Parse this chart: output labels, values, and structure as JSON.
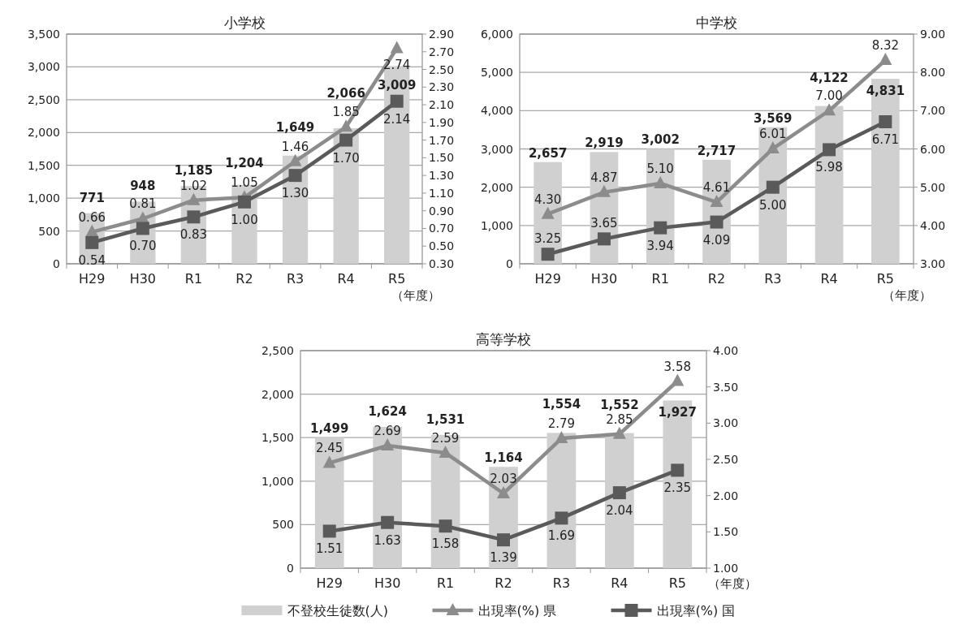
{
  "chart_data": [
    {
      "type": "bar",
      "title": "小学校",
      "xlabel": "（年度）",
      "categories": [
        "H29",
        "H30",
        "R1",
        "R2",
        "R3",
        "R4",
        "R5"
      ],
      "series": [
        {
          "color": "#d0d0d0",
          "values": [
            771,
            948,
            1185,
            1204,
            1649,
            2066,
            3009
          ],
          "value_labels": [
            "771",
            "948",
            "1,185",
            "1,204",
            "1,649",
            "2,066",
            "3,009"
          ]
        },
        {
          "type": "line",
          "axis": "y2",
          "color": "#8c8c8c",
          "marker": "triangle",
          "values": [
            0.66,
            0.81,
            1.02,
            1.05,
            1.46,
            1.85,
            2.74
          ],
          "value_labels": [
            "0.66",
            "0.81",
            "1.02",
            "1.05",
            "1.46",
            "1.85",
            "2.74"
          ]
        },
        {
          "type": "line",
          "axis": "y2",
          "color": "#5a5a5a",
          "marker": "square",
          "values": [
            0.54,
            0.7,
            0.83,
            1.0,
            1.3,
            1.7,
            2.14
          ],
          "value_labels": [
            "0.54",
            "0.70",
            "0.83",
            "1.00",
            "1.30",
            "1.70",
            "2.14"
          ]
        }
      ],
      "ylim": [
        0,
        3500
      ],
      "yticks": [
        {
          "value": 0,
          "label": "0"
        },
        {
          "value": 500,
          "label": "500"
        },
        {
          "value": 1000,
          "label": "1,000"
        },
        {
          "value": 1500,
          "label": "1,500"
        },
        {
          "value": 2000,
          "label": "2,000"
        },
        {
          "value": 2500,
          "label": "2,500"
        },
        {
          "value": 3000,
          "label": "3,000"
        },
        {
          "value": 3500,
          "label": "3,500"
        }
      ],
      "y2lim": [
        0.3,
        2.9
      ],
      "y2ticks": [
        {
          "value": 0.3,
          "label": "0.30"
        },
        {
          "value": 0.5,
          "label": "0.50"
        },
        {
          "value": 0.7,
          "label": "0.70"
        },
        {
          "value": 0.9,
          "label": "0.90"
        },
        {
          "value": 1.1,
          "label": "1.10"
        },
        {
          "value": 1.3,
          "label": "1.30"
        },
        {
          "value": 1.5,
          "label": "1.50"
        },
        {
          "value": 1.7,
          "label": "1.70"
        },
        {
          "value": 1.9,
          "label": "1.90"
        },
        {
          "value": 2.1,
          "label": "2.10"
        },
        {
          "value": 2.3,
          "label": "2.30"
        },
        {
          "value": 2.5,
          "label": "2.50"
        },
        {
          "value": 2.7,
          "label": "2.70"
        },
        {
          "value": 2.9,
          "label": "2.90"
        }
      ],
      "grid": "y"
    },
    {
      "type": "bar",
      "title": "中学校",
      "xlabel": "（年度）",
      "categories": [
        "H29",
        "H30",
        "R1",
        "R2",
        "R3",
        "R4",
        "R5"
      ],
      "series": [
        {
          "color": "#d0d0d0",
          "values": [
            2657,
            2919,
            3002,
            2717,
            3569,
            4122,
            4831
          ],
          "value_labels": [
            "2,657",
            "2,919",
            "3,002",
            "2,717",
            "3,569",
            "4,122",
            "4,831"
          ]
        },
        {
          "type": "line",
          "axis": "y2",
          "color": "#8c8c8c",
          "marker": "triangle",
          "values": [
            4.3,
            4.87,
            5.1,
            4.61,
            6.01,
            7.0,
            8.32
          ],
          "value_labels": [
            "4.30",
            "4.87",
            "5.10",
            "4.61",
            "6.01",
            "7.00",
            "8.32"
          ]
        },
        {
          "type": "line",
          "axis": "y2",
          "color": "#5a5a5a",
          "marker": "square",
          "values": [
            3.25,
            3.65,
            3.94,
            4.09,
            5.0,
            5.98,
            6.71
          ],
          "value_labels": [
            "3.25",
            "3.65",
            "3.94",
            "4.09",
            "5.00",
            "5.98",
            "6.71"
          ]
        }
      ],
      "ylim": [
        0,
        6000
      ],
      "yticks": [
        {
          "value": 0,
          "label": "0"
        },
        {
          "value": 1000,
          "label": "1,000"
        },
        {
          "value": 2000,
          "label": "2,000"
        },
        {
          "value": 3000,
          "label": "3,000"
        },
        {
          "value": 4000,
          "label": "4,000"
        },
        {
          "value": 5000,
          "label": "5,000"
        },
        {
          "value": 6000,
          "label": "6,000"
        }
      ],
      "y2lim": [
        3,
        9
      ],
      "y2ticks": [
        {
          "value": 3,
          "label": "3.00"
        },
        {
          "value": 4,
          "label": "4.00"
        },
        {
          "value": 5,
          "label": "5.00"
        },
        {
          "value": 6,
          "label": "6.00"
        },
        {
          "value": 7,
          "label": "7.00"
        },
        {
          "value": 8,
          "label": "8.00"
        },
        {
          "value": 9,
          "label": "9.00"
        }
      ],
      "grid": "y"
    },
    {
      "type": "bar",
      "title": "高等学校",
      "xlabel": "（年度）",
      "categories": [
        "H29",
        "H30",
        "R1",
        "R2",
        "R3",
        "R4",
        "R5"
      ],
      "series": [
        {
          "name": "不登校生徒数(人)",
          "color": "#d0d0d0",
          "values": [
            1499,
            1624,
            1531,
            1164,
            1554,
            1552,
            1927
          ],
          "value_labels": [
            "1,499",
            "1,624",
            "1,531",
            "1,164",
            "1,554",
            "1,552",
            "1,927"
          ]
        },
        {
          "type": "line",
          "name": "出現率(%) 県",
          "axis": "y2",
          "color": "#8c8c8c",
          "marker": "triangle",
          "values": [
            2.45,
            2.69,
            2.59,
            2.03,
            2.79,
            2.85,
            3.58
          ],
          "value_labels": [
            "2.45",
            "2.69",
            "2.59",
            "2.03",
            "2.79",
            "2.85",
            "3.58"
          ]
        },
        {
          "type": "line",
          "name": "出現率(%) 国",
          "axis": "y2",
          "color": "#5a5a5a",
          "marker": "square",
          "values": [
            1.51,
            1.63,
            1.58,
            1.39,
            1.69,
            2.04,
            2.35
          ],
          "value_labels": [
            "1.51",
            "1.63",
            "1.58",
            "1.39",
            "1.69",
            "2.04",
            "2.35"
          ]
        }
      ],
      "ylim": [
        0,
        2500
      ],
      "yticks": [
        {
          "value": 0,
          "label": "0"
        },
        {
          "value": 500,
          "label": "500"
        },
        {
          "value": 1000,
          "label": "1,000"
        },
        {
          "value": 1500,
          "label": "1,500"
        },
        {
          "value": 2000,
          "label": "2,000"
        },
        {
          "value": 2500,
          "label": "2,500"
        }
      ],
      "y2lim": [
        1,
        4
      ],
      "y2ticks": [
        {
          "value": 1,
          "label": "1.00"
        },
        {
          "value": 1.5,
          "label": "1.50"
        },
        {
          "value": 2,
          "label": "2.00"
        },
        {
          "value": 2.5,
          "label": "2.50"
        },
        {
          "value": 3,
          "label": "3.00"
        },
        {
          "value": 3.5,
          "label": "3.50"
        },
        {
          "value": 4,
          "label": "4.00"
        }
      ],
      "grid": "y",
      "legend": "bottom"
    }
  ]
}
